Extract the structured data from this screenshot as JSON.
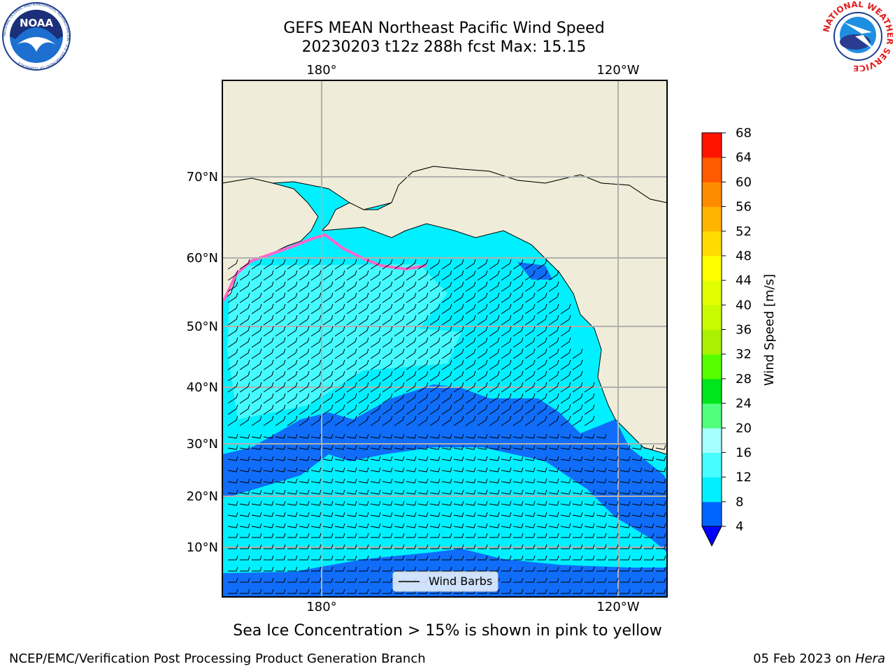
{
  "title": {
    "line1": "GEFS MEAN Northeast Pacific Wind Speed",
    "line2": "20230203 t12z 288h fcst   Max: 15.15"
  },
  "logos": {
    "left": {
      "name": "NOAA",
      "ring_text": "NATIONAL OCEANIC AND ATMOSPHERIC ADMINISTRATION · U.S. DEPARTMENT OF COMMERCE"
    },
    "right": {
      "ring_text": "NATIONAL WEATHER SERVICE"
    }
  },
  "map": {
    "lon_labels_top": [
      "180°",
      "120°W"
    ],
    "lon_labels_bottom": [
      "180°",
      "120°W"
    ],
    "lat_labels": [
      "70°N",
      "60°N",
      "50°N",
      "40°N",
      "30°N",
      "20°N",
      "10°N"
    ],
    "legend_label": "Wind Barbs",
    "colors": {
      "land": "#efedd9",
      "band_4_8": "#0f6dfa",
      "band_8_12": "#00f0ff",
      "band_12_16": "#45fbff",
      "ice": "#ff66cc",
      "grid": "#b0b0b0"
    }
  },
  "colorbar": {
    "label": "Wind Speed [m/s]",
    "ticks": [
      "68",
      "64",
      "60",
      "56",
      "52",
      "48",
      "44",
      "40",
      "36",
      "32",
      "28",
      "24",
      "20",
      "16",
      "12",
      "8",
      "4"
    ],
    "colors": [
      "#0064ff",
      "#00f0ff",
      "#47fdff",
      "#a5ffff",
      "#50ff7d",
      "#00e61e",
      "#55ff00",
      "#aaf000",
      "#c8fa00",
      "#e1ff00",
      "#ffff00",
      "#ffdc00",
      "#ffb400",
      "#ff8c00",
      "#ff5a00",
      "#ff1400"
    ],
    "extend_color": "#0000ff"
  },
  "caption": "Sea Ice Concentration > 15% is shown in pink to yellow",
  "footer": {
    "left": "NCEP/EMC/Verification Post Processing Product Generation Branch",
    "right_date": "05 Feb 2023 on ",
    "right_host": "Hera"
  }
}
